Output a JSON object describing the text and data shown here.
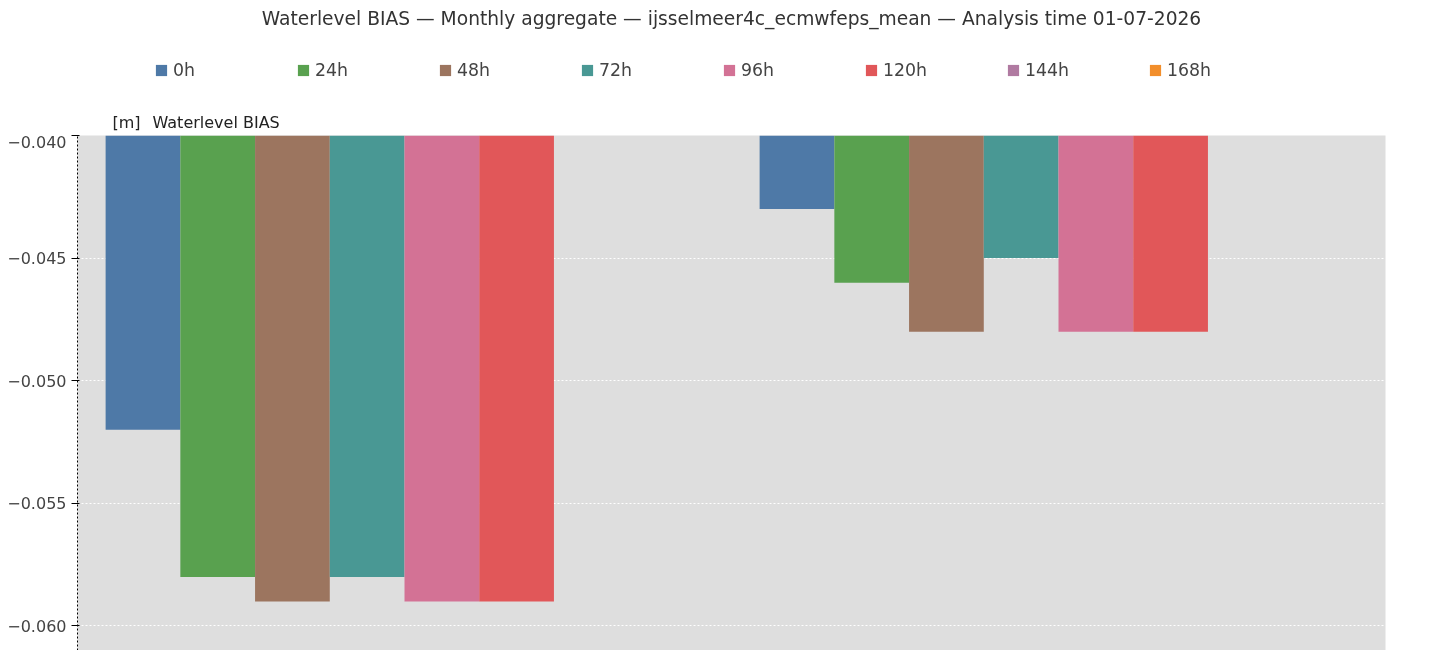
{
  "chart_data": {
    "type": "bar",
    "title": "Waterlevel BIAS — Monthly aggregate — ijsselmeer4c_ecmwfeps_mean — Analysis time 01-07-2026",
    "annotations": [
      "[m]",
      "Waterlevel BIAS"
    ],
    "categories": [
      null,
      null
    ],
    "series": [
      {
        "name": "0h",
        "color": "#4e79a7",
        "values": [
          -0.052,
          -0.043
        ]
      },
      {
        "name": "24h",
        "color": "#59a14f",
        "values": [
          -0.058,
          -0.046
        ]
      },
      {
        "name": "48h",
        "color": "#9c755f",
        "values": [
          -0.059,
          -0.048
        ]
      },
      {
        "name": "72h",
        "color": "#499894",
        "values": [
          -0.058,
          -0.045
        ]
      },
      {
        "name": "96h",
        "color": "#d37295",
        "values": [
          -0.059,
          -0.048
        ]
      },
      {
        "name": "120h",
        "color": "#e15759",
        "values": [
          -0.059,
          -0.048
        ]
      },
      {
        "name": "144h",
        "color": "#b07aa1",
        "values": [
          null,
          null
        ]
      },
      {
        "name": "168h",
        "color": "#f28e2b",
        "values": [
          null,
          null
        ]
      }
    ],
    "ylim": [
      -0.061,
      -0.04
    ],
    "yticks": [
      {
        "value": -0.04,
        "label": "−0.040"
      },
      {
        "value": -0.045,
        "label": "−0.045"
      },
      {
        "value": -0.05,
        "label": "−0.050"
      },
      {
        "value": -0.055,
        "label": "−0.055"
      },
      {
        "value": -0.06,
        "label": "−0.060"
      }
    ],
    "grid": "y",
    "legend": "top",
    "tick_labels": "y"
  }
}
